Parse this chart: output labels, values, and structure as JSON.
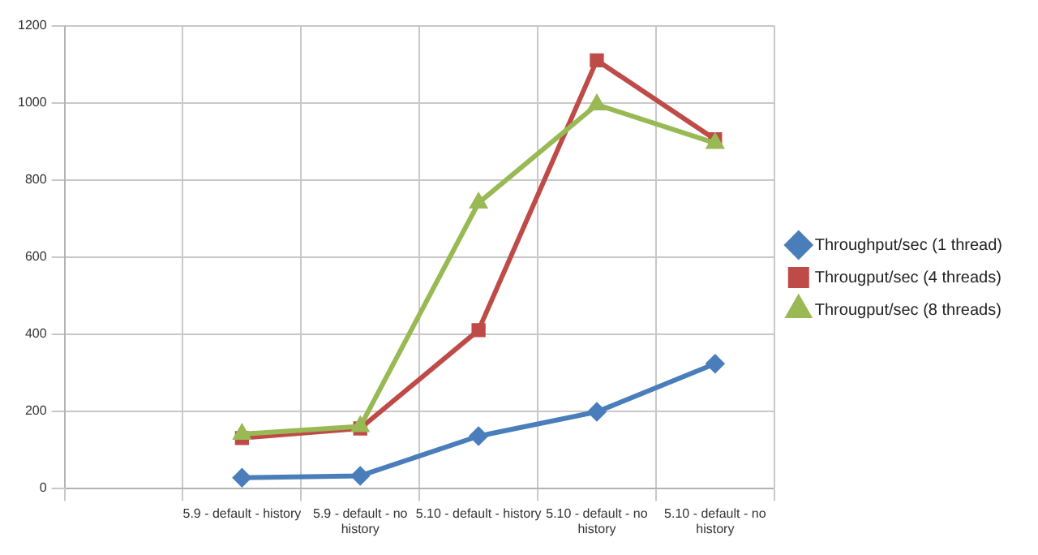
{
  "chart_data": {
    "type": "line",
    "categories": [
      null,
      "5.9 - default - history",
      "5.9 - default - no history",
      "5.10 - default - history",
      "5.10 - default - no history",
      "5.10 - default - no history"
    ],
    "series": [
      {
        "name": "Throughput/sec (1 thread)",
        "color": "#4a7ebb",
        "marker": "diamond",
        "values": [
          null,
          27,
          32,
          135,
          198,
          323
        ]
      },
      {
        "name": "Througput/sec (4 threads)",
        "color": "#be4b48",
        "marker": "square",
        "values": [
          null,
          130,
          155,
          410,
          1110,
          905
        ]
      },
      {
        "name": "Througput/sec (8 threads)",
        "color": "#98b954",
        "marker": "triangle",
        "values": [
          null,
          140,
          160,
          740,
          995,
          895
        ]
      }
    ],
    "ylim": [
      0,
      1200
    ],
    "yticks": [
      0,
      200,
      400,
      600,
      800,
      1000,
      1200
    ],
    "grid": true,
    "legend": "right",
    "line_style": "solid"
  }
}
